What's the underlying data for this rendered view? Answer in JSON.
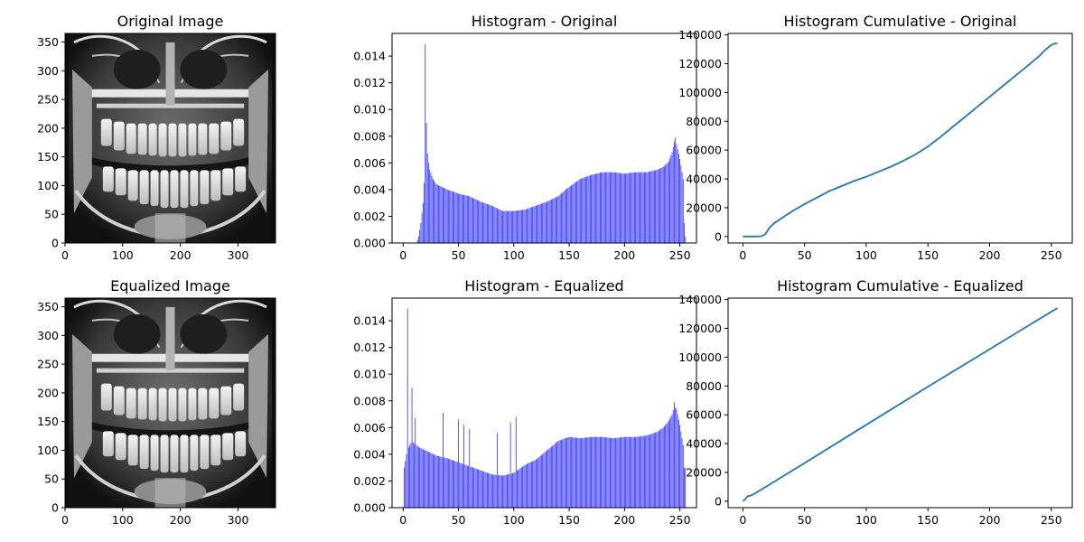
{
  "figure": {
    "panels": [
      {
        "id": "orig-image",
        "title": "Original Image"
      },
      {
        "id": "hist-orig",
        "title": "Histogram - Original"
      },
      {
        "id": "cdf-orig",
        "title": "Histogram Cumulative - Original"
      },
      {
        "id": "eq-image",
        "title": "Equalized Image"
      },
      {
        "id": "hist-eq",
        "title": "Histogram - Equalized"
      },
      {
        "id": "cdf-eq",
        "title": "Histogram Cumulative - Equalized"
      }
    ]
  },
  "chart_data": [
    {
      "type": "heatmap",
      "title": "Original Image",
      "description_kind": "grayscale dental panoramic x-ray",
      "xlim": [
        0,
        365
      ],
      "ylim": [
        365,
        0
      ],
      "x_ticks": [
        0,
        100,
        200,
        300
      ],
      "y_ticks": [
        0,
        50,
        100,
        150,
        200,
        250,
        300,
        350
      ],
      "xlabel": "",
      "ylabel": ""
    },
    {
      "type": "bar",
      "title": "Histogram - Original",
      "color": "#0000ff",
      "xlim": [
        -10,
        265
      ],
      "ylim": [
        0,
        0.0157
      ],
      "x_ticks": [
        0,
        50,
        100,
        150,
        200,
        250
      ],
      "y_ticks": [
        0.0,
        0.002,
        0.004,
        0.006,
        0.008,
        0.01,
        0.012,
        0.014
      ],
      "y_tick_labels": [
        "0.000",
        "0.002",
        "0.004",
        "0.006",
        "0.008",
        "0.010",
        "0.012",
        "0.014"
      ],
      "profile_x": [
        0,
        12,
        14,
        16,
        18,
        19,
        20,
        21,
        22,
        24,
        27,
        30,
        35,
        40,
        50,
        60,
        70,
        80,
        90,
        100,
        110,
        120,
        130,
        140,
        150,
        160,
        170,
        180,
        190,
        200,
        210,
        220,
        230,
        235,
        240,
        243,
        245,
        247,
        250,
        253,
        254,
        255
      ],
      "profile_y": [
        0,
        0,
        0.0005,
        0.0015,
        0.003,
        0.0045,
        0.006,
        0.0065,
        0.0062,
        0.0055,
        0.0048,
        0.0044,
        0.0042,
        0.004,
        0.0037,
        0.0035,
        0.0031,
        0.0028,
        0.0024,
        0.0024,
        0.0025,
        0.0028,
        0.0031,
        0.0035,
        0.0042,
        0.0048,
        0.0051,
        0.0053,
        0.0053,
        0.0052,
        0.0053,
        0.0053,
        0.0055,
        0.0057,
        0.0061,
        0.0068,
        0.0076,
        0.0074,
        0.0063,
        0.0048,
        0.0015,
        0.0005
      ],
      "spikes": [
        [
          20,
          0.0149
        ],
        [
          21,
          0.009
        ],
        [
          22,
          0.0067
        ],
        [
          23,
          0.006
        ],
        [
          246,
          0.0079
        ]
      ],
      "xlabel": "",
      "ylabel": ""
    },
    {
      "type": "line",
      "title": "Histogram Cumulative - Original",
      "color": "#1f77b4",
      "xlim": [
        -12,
        267
      ],
      "ylim": [
        -4500,
        141000
      ],
      "x_ticks": [
        0,
        50,
        100,
        150,
        200,
        250
      ],
      "y_ticks": [
        0,
        20000,
        40000,
        60000,
        80000,
        100000,
        120000,
        140000
      ],
      "x": [
        0,
        10,
        15,
        18,
        20,
        22,
        25,
        30,
        40,
        50,
        60,
        70,
        80,
        90,
        100,
        110,
        120,
        130,
        140,
        150,
        160,
        170,
        180,
        190,
        200,
        210,
        220,
        230,
        240,
        245,
        250,
        253,
        255
      ],
      "y": [
        0,
        0,
        200,
        1500,
        4000,
        6500,
        9000,
        12000,
        17500,
        22500,
        27000,
        31500,
        35000,
        38500,
        41500,
        45000,
        48500,
        52500,
        57000,
        62500,
        69000,
        76000,
        83000,
        90000,
        97000,
        104000,
        111000,
        118000,
        125000,
        129500,
        133000,
        134000,
        134000
      ],
      "xlabel": "",
      "ylabel": ""
    },
    {
      "type": "heatmap",
      "title": "Equalized Image",
      "description_kind": "grayscale dental panoramic x-ray",
      "xlim": [
        0,
        365
      ],
      "ylim": [
        365,
        0
      ],
      "x_ticks": [
        0,
        100,
        200,
        300
      ],
      "y_ticks": [
        0,
        50,
        100,
        150,
        200,
        250,
        300,
        350
      ],
      "xlabel": "",
      "ylabel": ""
    },
    {
      "type": "bar",
      "title": "Histogram - Equalized",
      "color": "#0000ff",
      "xlim": [
        -10,
        265
      ],
      "ylim": [
        0,
        0.0157
      ],
      "x_ticks": [
        0,
        50,
        100,
        150,
        200,
        250
      ],
      "y_ticks": [
        0.0,
        0.002,
        0.004,
        0.006,
        0.008,
        0.01,
        0.012,
        0.014
      ],
      "y_tick_labels": [
        "0.000",
        "0.002",
        "0.004",
        "0.006",
        "0.008",
        "0.010",
        "0.012",
        "0.014"
      ],
      "profile_x": [
        0,
        1,
        3,
        5,
        8,
        10,
        15,
        20,
        25,
        30,
        40,
        50,
        60,
        70,
        80,
        90,
        100,
        110,
        120,
        130,
        140,
        150,
        160,
        170,
        180,
        190,
        200,
        210,
        220,
        230,
        235,
        240,
        243,
        245,
        247,
        250,
        253,
        254,
        255
      ],
      "profile_y": [
        0,
        0.003,
        0.004,
        0.0045,
        0.005,
        0.0048,
        0.0045,
        0.0043,
        0.0041,
        0.0039,
        0.0037,
        0.0034,
        0.0031,
        0.0028,
        0.0025,
        0.0024,
        0.0026,
        0.0032,
        0.0036,
        0.0043,
        0.005,
        0.0053,
        0.0052,
        0.0053,
        0.0053,
        0.0052,
        0.0053,
        0.0053,
        0.0054,
        0.0057,
        0.006,
        0.0065,
        0.007,
        0.0076,
        0.0074,
        0.0062,
        0.0047,
        0.003,
        0.003
      ],
      "spikes": [
        [
          4,
          0.0149
        ],
        [
          8,
          0.009
        ],
        [
          11,
          0.0067
        ],
        [
          36,
          0.0071
        ],
        [
          50,
          0.0066
        ],
        [
          55,
          0.0062
        ],
        [
          60,
          0.0059
        ],
        [
          85,
          0.0056
        ],
        [
          97,
          0.0064
        ],
        [
          102,
          0.0068
        ],
        [
          245,
          0.0079
        ]
      ],
      "xlabel": "",
      "ylabel": ""
    },
    {
      "type": "line",
      "title": "Histogram Cumulative - Equalized",
      "color": "#1f77b4",
      "xlim": [
        -12,
        267
      ],
      "ylim": [
        -4500,
        141000
      ],
      "x_ticks": [
        0,
        50,
        100,
        150,
        200,
        250
      ],
      "y_ticks": [
        0,
        20000,
        40000,
        60000,
        80000,
        100000,
        120000,
        140000
      ],
      "x": [
        0,
        2,
        4,
        6,
        8,
        10,
        50,
        100,
        150,
        200,
        250,
        255
      ],
      "y": [
        0,
        1500,
        3500,
        3800,
        4500,
        5500,
        26500,
        53000,
        79500,
        105500,
        131500,
        134000
      ],
      "xlabel": "",
      "ylabel": ""
    }
  ]
}
